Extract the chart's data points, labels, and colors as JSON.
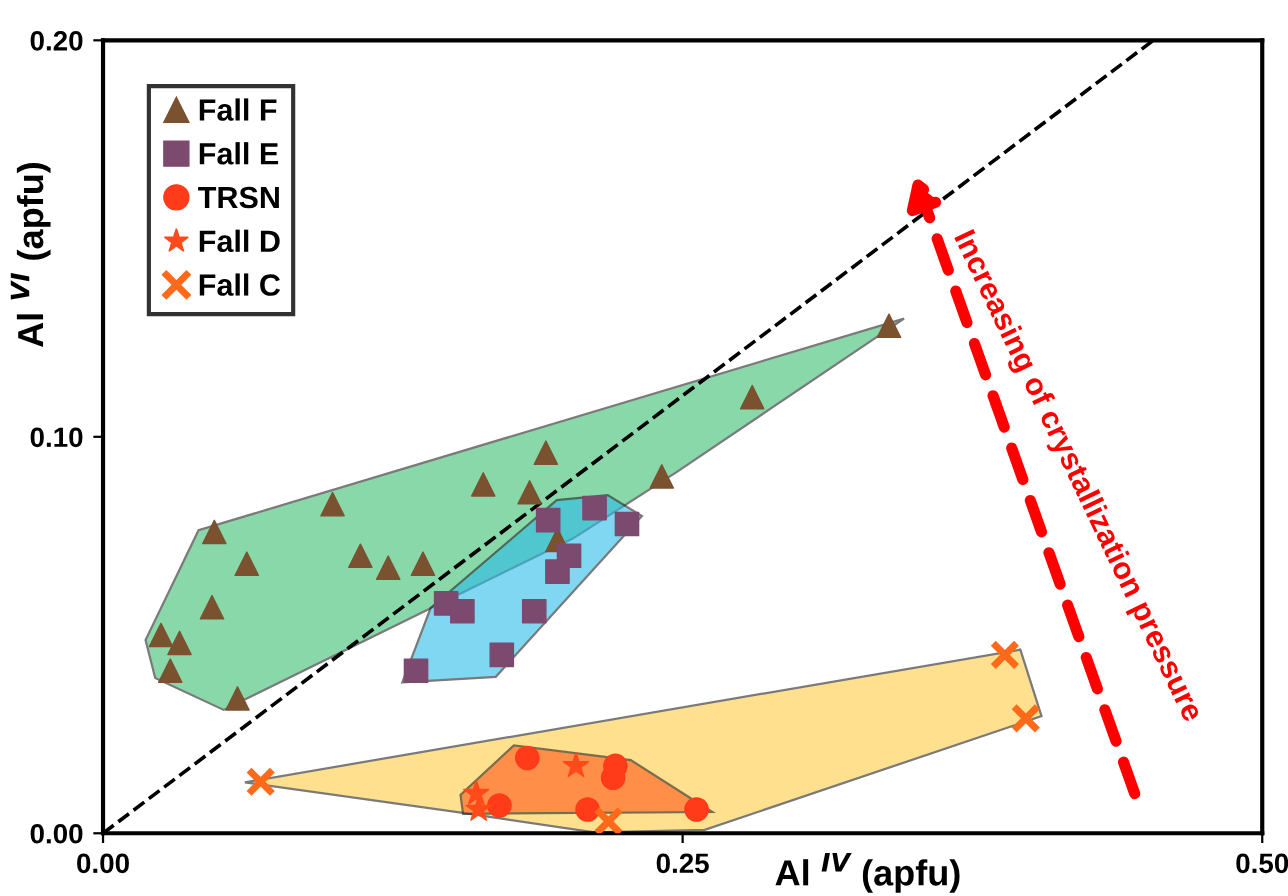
{
  "chart_data": {
    "type": "scatter",
    "xlabel": "Al $^{IV}$ (apfu)",
    "ylabel": "Al $^{VI}$ (apfu)",
    "xlim": [
      0,
      0.5
    ],
    "ylim": [
      0,
      0.2
    ],
    "xticks": [
      {
        "value": 0,
        "label": "0.00"
      },
      {
        "value": 0.25,
        "label": "0.25"
      },
      {
        "value": 0.5,
        "label": "0.50"
      }
    ],
    "yticks": [
      {
        "value": 0,
        "label": "0.00"
      },
      {
        "value": 0.1,
        "label": "0.10"
      },
      {
        "value": 0.2,
        "label": "0.20"
      }
    ],
    "grid": false,
    "legend": "top left",
    "annotations": [
      "Increasing of crystallization pressure"
    ],
    "series": [
      {
        "name": "Fall F",
        "color": "#7a5230",
        "marker": "triangle",
        "x": [
          0.048,
          0.062,
          0.047,
          0.025,
          0.033,
          0.029,
          0.058,
          0.099,
          0.111,
          0.123,
          0.138,
          0.164,
          0.184,
          0.191,
          0.241,
          0.28,
          0.339,
          0.196
        ],
        "values": [
          0.076,
          0.068,
          0.057,
          0.05,
          0.048,
          0.041,
          0.034,
          0.083,
          0.07,
          0.067,
          0.068,
          0.088,
          0.086,
          0.096,
          0.09,
          0.11,
          0.128,
          0.074
        ]
      },
      {
        "name": "Fall E",
        "color": "#7b4a6e",
        "marker": "square",
        "x": [
          0.148,
          0.155,
          0.135,
          0.172,
          0.186,
          0.196,
          0.201,
          0.192,
          0.212,
          0.226
        ],
        "values": [
          0.058,
          0.056,
          0.041,
          0.045,
          0.056,
          0.066,
          0.07,
          0.079,
          0.082,
          0.078
        ]
      },
      {
        "name": "TRSN",
        "color": "#ff3b1a",
        "marker": "circle",
        "x": [
          0.183,
          0.221,
          0.22,
          0.171,
          0.209,
          0.256
        ],
        "values": [
          0.019,
          0.017,
          0.014,
          0.007,
          0.006,
          0.006
        ]
      },
      {
        "name": "Fall D",
        "color": "#ff4a1a",
        "marker": "star",
        "x": [
          0.204,
          0.161,
          0.162
        ],
        "values": [
          0.017,
          0.01,
          0.006
        ]
      },
      {
        "name": "Fall C",
        "color": "#ff6a1a",
        "marker": "cross",
        "x": [
          0.068,
          0.218,
          0.389,
          0.398
        ],
        "values": [
          0.013,
          0.003,
          0.045,
          0.029
        ]
      },
      {
        "type": "line",
        "color": "#000000",
        "line_style": "dashed",
        "marker": "none",
        "x": [
          0,
          0.453
        ],
        "values": [
          0,
          0.2
        ]
      }
    ]
  }
}
